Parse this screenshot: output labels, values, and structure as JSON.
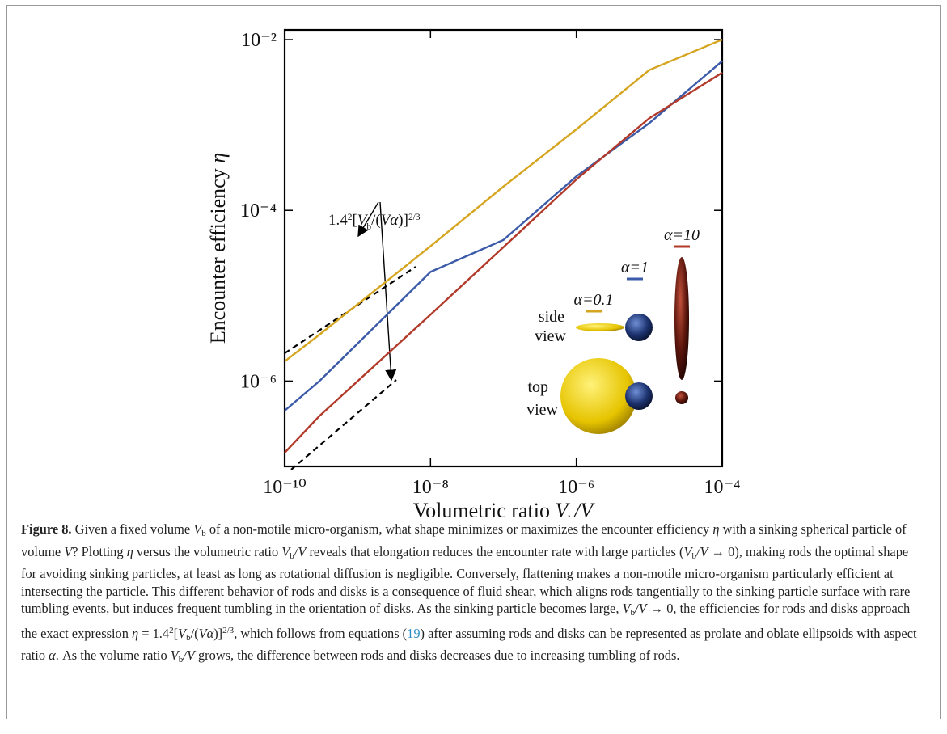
{
  "chart_data": {
    "type": "line",
    "log_x": true,
    "log_y": true,
    "xlabel": [
      {
        "t": "Volumetric ratio "
      },
      {
        "t": "V",
        "f": "i"
      },
      {
        "t": "b",
        "f": "sub"
      },
      {
        "t": "/V",
        "f": "i"
      }
    ],
    "ylabel": [
      {
        "t": "Encounter efficiency "
      },
      {
        "t": "η",
        "f": "i"
      }
    ],
    "x": [
      1e-10,
      3e-10,
      1e-08,
      1e-07,
      1e-06,
      1e-05,
      0.0001
    ],
    "series": [
      {
        "name": "α=0.1",
        "color": "#d6a520",
        "values": [
          1.7e-06,
          3.5e-06,
          3.8e-05,
          0.00019,
          0.00089,
          0.0044,
          0.01
        ]
      },
      {
        "name": "α=1",
        "color": "#3b5aa8",
        "values": [
          4.5e-07,
          1e-06,
          1.9e-05,
          4.5e-05,
          0.00025,
          0.00105,
          0.0056
        ]
      },
      {
        "name": "α=10",
        "color": "#b23a2a",
        "values": [
          1.45e-07,
          3.9e-07,
          6e-06,
          3.7e-05,
          0.00023,
          0.0012,
          0.0041
        ]
      }
    ],
    "xlim": [
      1e-10,
      0.0001
    ],
    "ylim": [
      1e-07,
      0.013
    ],
    "xticks": [
      {
        "value": 1e-10,
        "label": "10⁻¹⁰"
      },
      {
        "value": 1e-08,
        "label": "10⁻⁸"
      },
      {
        "value": 1e-06,
        "label": "10⁻⁶"
      },
      {
        "value": 0.0001,
        "label": "10⁻⁴"
      }
    ],
    "yticks": [
      {
        "value": 1e-06,
        "label": "10⁻⁶"
      },
      {
        "value": 0.0001,
        "label": "10⁻⁴"
      },
      {
        "value": 0.01,
        "label": "10⁻²"
      }
    ],
    "grid": false,
    "annotation": [
      {
        "t": "1.4"
      },
      {
        "t": "2",
        "f": "sup"
      },
      {
        "t": "["
      },
      {
        "t": "V",
        "f": "i"
      },
      {
        "t": "b",
        "f": "sub"
      },
      {
        "t": "/("
      },
      {
        "t": "Vα",
        "f": "i"
      },
      {
        "t": ")]"
      },
      {
        "t": "2/3",
        "f": "sup"
      }
    ],
    "inset_labels": {
      "side": [
        "side",
        "view"
      ],
      "top": [
        "top",
        "view"
      ]
    }
  },
  "caption": [
    {
      "t": "Figure 8.",
      "f": "b"
    },
    {
      "t": " Given a fixed volume "
    },
    {
      "t": "V",
      "f": "i"
    },
    {
      "t": "b",
      "f": "sub"
    },
    {
      "t": " of a non-motile micro-organism, what shape minimizes or maximizes the encounter efficiency "
    },
    {
      "t": "η",
      "f": "i"
    },
    {
      "t": " with a sinking spherical particle of volume "
    },
    {
      "t": "V",
      "f": "i"
    },
    {
      "t": "? Plotting "
    },
    {
      "t": "η",
      "f": "i"
    },
    {
      "t": " versus the volumetric ratio "
    },
    {
      "t": "V",
      "f": "i"
    },
    {
      "t": "b",
      "f": "sub"
    },
    {
      "t": "/V",
      "f": "i"
    },
    {
      "t": " reveals that elongation reduces the encounter rate with large particles  ("
    },
    {
      "t": "V",
      "f": "i"
    },
    {
      "t": "b",
      "f": "sub"
    },
    {
      "t": "/V",
      "f": "i"
    },
    {
      "t": " → 0), making rods the optimal shape for avoiding sinking particles, at least as long as rotational diffusion is negligible. Conversely, flattening makes a non-motile micro-organism particularly efficient at intersecting the particle. This different behavior of rods and disks is a consequence of fluid shear, which aligns rods tangentially to the sinking particle surface with rare tumbling events, but induces frequent tumbling in the orientation of disks. As the sinking particle becomes large, "
    },
    {
      "t": "V",
      "f": "i"
    },
    {
      "t": "b",
      "f": "sub"
    },
    {
      "t": "/V",
      "f": "i"
    },
    {
      "t": " → 0, the efficiencies for rods and disks approach the exact expression "
    },
    {
      "t": "η",
      "f": "i"
    },
    {
      "t": " = 1.4"
    },
    {
      "t": "2",
      "f": "sup"
    },
    {
      "t": "["
    },
    {
      "t": "V",
      "f": "i"
    },
    {
      "t": "b",
      "f": "sub"
    },
    {
      "t": "/("
    },
    {
      "t": "Vα",
      "f": "i"
    },
    {
      "t": ")]"
    },
    {
      "t": "2/3",
      "f": "sup"
    },
    {
      "t": ", which follows from equations ("
    },
    {
      "t": "19",
      "f": "link"
    },
    {
      "t": ") after assuming rods and disks can be represented as prolate and oblate ellipsoids with aspect ratio "
    },
    {
      "t": "α",
      "f": "i"
    },
    {
      "t": ". As the volume ratio "
    },
    {
      "t": "V",
      "f": "i"
    },
    {
      "t": "b",
      "f": "sub"
    },
    {
      "t": "/V",
      "f": "i"
    },
    {
      "t": " grows, the difference between rods and disks decreases due to increasing tumbling of rods."
    }
  ]
}
